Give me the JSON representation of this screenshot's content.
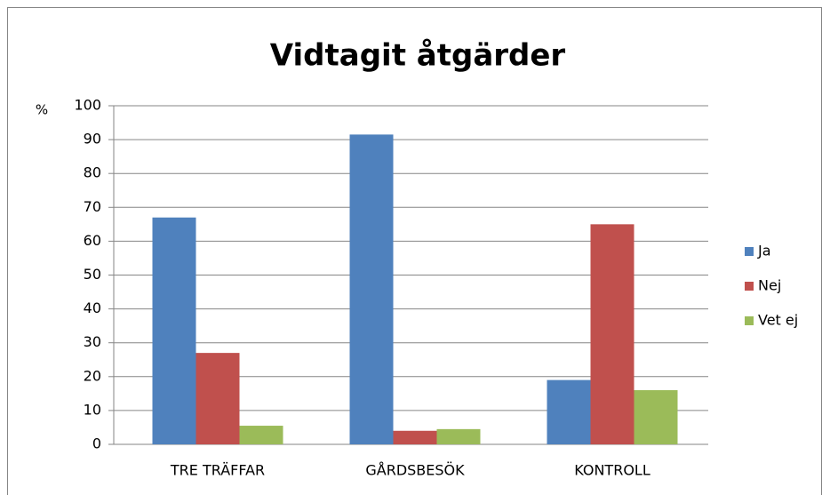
{
  "chart_data": {
    "type": "bar",
    "title": "Vidtagit åtgärder",
    "y_label": "%",
    "categories": [
      "TRE TRÄFFAR",
      "GÅRDSBESÖK",
      "KONTROLL"
    ],
    "series": [
      {
        "name": "Ja",
        "color": "#4f81bd",
        "values": [
          67,
          91.5,
          19
        ]
      },
      {
        "name": "Nej",
        "color": "#c0504d",
        "values": [
          27,
          4,
          65
        ]
      },
      {
        "name": "Vet ej",
        "color": "#9bbb59",
        "values": [
          5.5,
          4.5,
          16
        ]
      }
    ],
    "ylim": [
      0,
      100
    ],
    "yticks": [
      0,
      10,
      20,
      30,
      40,
      50,
      60,
      70,
      80,
      90,
      100
    ],
    "grid": true,
    "legend": "right"
  }
}
